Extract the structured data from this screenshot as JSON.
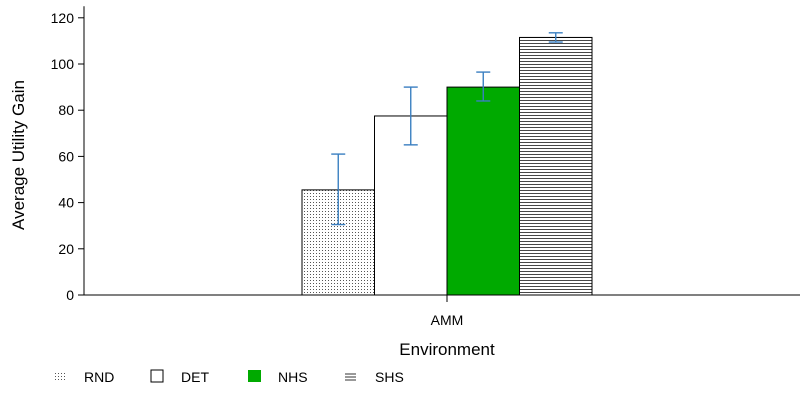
{
  "chart_data": {
    "type": "bar",
    "xlabel": "Environment",
    "ylabel": "Average Utility Gain",
    "ylim": [
      0,
      125
    ],
    "yticks": [
      0,
      20,
      40,
      60,
      80,
      100,
      120
    ],
    "categories": [
      "AMM"
    ],
    "series": [
      {
        "name": "RND",
        "values": [
          45.5
        ],
        "error_low": [
          30.5
        ],
        "error_high": [
          61
        ],
        "fill": "dots",
        "color": "#ffffff"
      },
      {
        "name": "DET",
        "values": [
          77.5
        ],
        "error_low": [
          65
        ],
        "error_high": [
          90
        ],
        "fill": "solid",
        "color": "#ffffff"
      },
      {
        "name": "NHS",
        "values": [
          90
        ],
        "error_low": [
          84
        ],
        "error_high": [
          96.5
        ],
        "fill": "solid",
        "color": "#00aa00"
      },
      {
        "name": "SHS",
        "values": [
          111.5
        ],
        "error_low": [
          109.5
        ],
        "error_high": [
          113.5
        ],
        "fill": "hlines",
        "color": "#ffffff"
      }
    ],
    "error_bar_color": "#3a7fc1",
    "legend_position": "bottom-left",
    "grid": false
  }
}
